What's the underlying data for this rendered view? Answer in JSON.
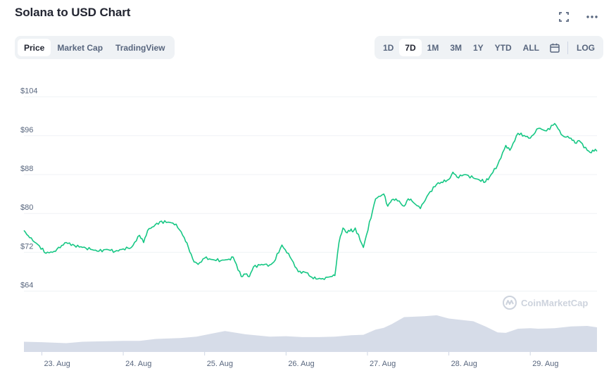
{
  "header": {
    "title": "Solana to USD Chart",
    "icons": [
      "fullscreen-icon",
      "more-icon"
    ]
  },
  "view_tabs": [
    {
      "label": "Price",
      "active": true
    },
    {
      "label": "Market Cap",
      "active": false
    },
    {
      "label": "TradingView",
      "active": false
    }
  ],
  "range_tabs": [
    {
      "label": "1D",
      "active": false
    },
    {
      "label": "7D",
      "active": true
    },
    {
      "label": "1M",
      "active": false
    },
    {
      "label": "3M",
      "active": false
    },
    {
      "label": "1Y",
      "active": false
    },
    {
      "label": "YTD",
      "active": false
    },
    {
      "label": "ALL",
      "active": false
    }
  ],
  "log_label": "LOG",
  "watermark": "CoinMarketCap",
  "colors": {
    "line": "#16c784",
    "volume": "#cfd6e4",
    "grid": "#eff2f5",
    "axis_text": "#58667e"
  },
  "chart_data": {
    "type": "line",
    "title": "Solana to USD Chart",
    "ylim": [
      58,
      108
    ],
    "y_ticks": [
      {
        "value": 104,
        "label": "$104"
      },
      {
        "value": 96,
        "label": "$96"
      },
      {
        "value": 88,
        "label": "$88"
      },
      {
        "value": 80,
        "label": "$80"
      },
      {
        "value": 72,
        "label": "$72"
      },
      {
        "value": 64,
        "label": "$64"
      }
    ],
    "xlim": [
      22.78,
      29.82
    ],
    "x_ticks": [
      {
        "value": 23,
        "label": "23. Aug"
      },
      {
        "value": 24,
        "label": "24. Aug"
      },
      {
        "value": 25,
        "label": "25. Aug"
      },
      {
        "value": 26,
        "label": "26. Aug"
      },
      {
        "value": 27,
        "label": "27. Aug"
      },
      {
        "value": 28,
        "label": "28. Aug"
      },
      {
        "value": 29,
        "label": "29. Aug"
      }
    ],
    "series": [
      {
        "x": [
          22.78,
          22.85,
          22.95,
          23.05,
          23.15,
          23.3,
          23.4,
          23.5,
          23.6,
          23.7,
          23.8,
          23.9,
          24.0,
          24.1,
          24.2,
          24.25,
          24.3,
          24.45,
          24.55,
          24.65,
          24.75,
          24.8,
          24.87,
          24.92,
          25.0,
          25.1,
          25.2,
          25.3,
          25.35,
          25.45,
          25.5,
          25.55,
          25.6,
          25.7,
          25.8,
          25.85,
          25.95,
          26.05,
          26.15,
          26.25,
          26.3,
          26.37,
          26.45,
          26.55,
          26.6,
          26.65,
          26.7,
          26.75,
          26.8,
          26.82,
          26.85,
          26.95,
          27.1,
          27.2,
          27.25,
          27.3,
          27.35,
          27.45,
          27.5,
          27.55,
          27.65,
          27.75,
          27.85,
          28.0,
          28.05,
          28.1,
          28.2,
          28.3,
          28.45,
          28.5,
          28.6,
          28.7,
          28.75,
          28.85,
          29.0,
          29.1,
          29.2,
          29.3,
          29.4,
          29.5,
          29.55,
          29.6,
          29.7,
          29.75,
          29.8,
          29.82
        ],
        "y": [
          76.5,
          75.0,
          73.6,
          71.8,
          72.2,
          74.0,
          73.4,
          73.0,
          72.6,
          72.2,
          72.6,
          72.2,
          72.7,
          73.0,
          75.5,
          74.0,
          76.5,
          78.3,
          78.2,
          77.8,
          75.0,
          73.0,
          70.0,
          69.5,
          70.8,
          70.5,
          70.3,
          70.6,
          71.0,
          67.0,
          67.5,
          67.0,
          69.0,
          69.5,
          69.4,
          70.0,
          73.5,
          71.0,
          68.0,
          67.8,
          67.0,
          66.5,
          66.6,
          67.0,
          67.2,
          74.0,
          77.0,
          76.0,
          76.8,
          76.2,
          77.0,
          73.0,
          83.0,
          84.0,
          81.5,
          82.8,
          83.0,
          81.5,
          83.0,
          82.5,
          81.0,
          84.0,
          86.0,
          87.0,
          88.5,
          87.5,
          88.0,
          87.3,
          86.5,
          87.5,
          90.0,
          94.0,
          93.0,
          96.5,
          95.5,
          97.5,
          97.0,
          98.5,
          96.0,
          95.5,
          94.5,
          95.0,
          93.0,
          92.5,
          93.2,
          92.8
        ]
      }
    ],
    "volume": {
      "x": [
        22.78,
        23.0,
        23.3,
        23.5,
        23.8,
        24.0,
        24.2,
        24.4,
        24.7,
        24.9,
        25.1,
        25.25,
        25.5,
        25.8,
        26.0,
        26.2,
        26.4,
        26.6,
        26.8,
        26.95,
        27.1,
        27.2,
        27.3,
        27.45,
        27.7,
        27.85,
        28.0,
        28.2,
        28.3,
        28.45,
        28.6,
        28.7,
        28.85,
        29.0,
        29.1,
        29.3,
        29.5,
        29.7,
        29.82
      ],
      "values": [
        0.22,
        0.21,
        0.19,
        0.22,
        0.23,
        0.24,
        0.24,
        0.28,
        0.3,
        0.33,
        0.4,
        0.45,
        0.38,
        0.33,
        0.34,
        0.32,
        0.32,
        0.33,
        0.36,
        0.37,
        0.48,
        0.52,
        0.6,
        0.75,
        0.77,
        0.79,
        0.72,
        0.68,
        0.66,
        0.55,
        0.42,
        0.41,
        0.5,
        0.51,
        0.5,
        0.51,
        0.55,
        0.56,
        0.53
      ]
    }
  }
}
